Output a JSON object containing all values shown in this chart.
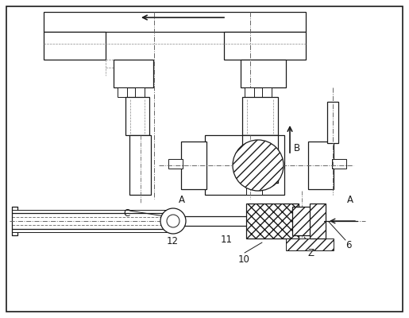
{
  "bg_color": "#ffffff",
  "line_color": "#1a1a1a",
  "labels": {
    "A_left": "A",
    "A_right": "A",
    "B": "B",
    "C": "C",
    "num_6": "6",
    "num_7": "Z",
    "num_10": "10",
    "num_11": "11",
    "num_12": "12"
  }
}
